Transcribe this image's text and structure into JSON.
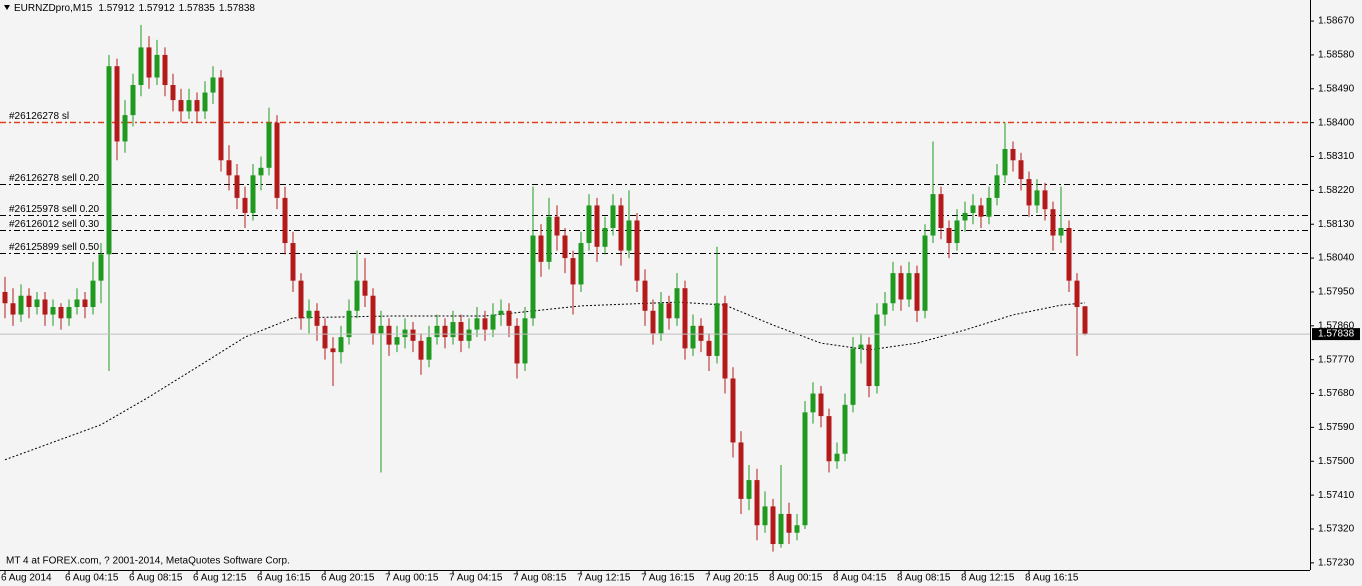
{
  "chart_data": {
    "type": "candlestick",
    "title": "EURNZDpro,M15",
    "annotation": "MT 4 at FOREX.com, ? 2001-2014, MetaQuotes Software Corp.",
    "up_color": "#1f9a1f",
    "down_color": "#b31b1b",
    "ylim": [
      1.57211,
      1.58718
    ],
    "yticks": [
      {
        "value": 1.5867,
        "label": "1.58670"
      },
      {
        "value": 1.5858,
        "label": "1.58580"
      },
      {
        "value": 1.5849,
        "label": "1.58490"
      },
      {
        "value": 1.584,
        "label": "1.58400"
      },
      {
        "value": 1.5831,
        "label": "1.58310"
      },
      {
        "value": 1.5822,
        "label": "1.58220"
      },
      {
        "value": 1.5813,
        "label": "1.58130"
      },
      {
        "value": 1.5804,
        "label": "1.58040"
      },
      {
        "value": 1.5795,
        "label": "1.57950"
      },
      {
        "value": 1.5786,
        "label": "1.57860"
      },
      {
        "value": 1.5777,
        "label": "1.57770"
      },
      {
        "value": 1.5768,
        "label": "1.57680"
      },
      {
        "value": 1.5759,
        "label": "1.57590"
      },
      {
        "value": 1.575,
        "label": "1.57500"
      },
      {
        "value": 1.5741,
        "label": "1.57410"
      },
      {
        "value": 1.5732,
        "label": "1.57320"
      },
      {
        "value": 1.5723,
        "label": "1.57230"
      }
    ],
    "categories": [
      "6 Aug 2014",
      null,
      null,
      null,
      null,
      null,
      null,
      null,
      "6 Aug 04:15",
      null,
      null,
      null,
      null,
      null,
      null,
      null,
      "6 Aug 08:15",
      null,
      null,
      null,
      null,
      null,
      null,
      null,
      "6 Aug 12:15",
      null,
      null,
      null,
      null,
      null,
      null,
      null,
      "6 Aug 16:15",
      null,
      null,
      null,
      null,
      null,
      null,
      null,
      "6 Aug 20:15",
      null,
      null,
      null,
      null,
      null,
      null,
      null,
      "7 Aug 00:15",
      null,
      null,
      null,
      null,
      null,
      null,
      null,
      "7 Aug 04:15",
      null,
      null,
      null,
      null,
      null,
      null,
      null,
      "7 Aug 08:15",
      null,
      null,
      null,
      null,
      null,
      null,
      null,
      "7 Aug 12:15",
      null,
      null,
      null,
      null,
      null,
      null,
      null,
      "7 Aug 16:15",
      null,
      null,
      null,
      null,
      null,
      null,
      null,
      "7 Aug 20:15",
      null,
      null,
      null,
      null,
      null,
      null,
      null,
      "8 Aug 00:15",
      null,
      null,
      null,
      null,
      null,
      null,
      null,
      "8 Aug 04:15",
      null,
      null,
      null,
      null,
      null,
      null,
      null,
      "8 Aug 08:15",
      null,
      null,
      null,
      null,
      null,
      null,
      null,
      "8 Aug 12:15",
      null,
      null,
      null,
      null,
      null,
      null,
      null,
      "8 Aug 16:15",
      null,
      null,
      null,
      null,
      null,
      null,
      null
    ],
    "candles": [
      [
        1.5795,
        1.5799,
        1.5788,
        1.5792
      ],
      [
        1.5792,
        1.5796,
        1.5786,
        1.5789
      ],
      [
        1.5789,
        1.5797,
        1.5787,
        1.5794
      ],
      [
        1.5794,
        1.5796,
        1.5788,
        1.5791
      ],
      [
        1.5791,
        1.5795,
        1.5789,
        1.5793
      ],
      [
        1.5793,
        1.5795,
        1.5786,
        1.5789
      ],
      [
        1.5789,
        1.5793,
        1.5786,
        1.5791
      ],
      [
        1.5791,
        1.5792,
        1.5785,
        1.5788
      ],
      [
        1.5788,
        1.5793,
        1.5786,
        1.5791
      ],
      [
        1.5791,
        1.5796,
        1.5789,
        1.5793
      ],
      [
        1.5793,
        1.5795,
        1.5788,
        1.5791
      ],
      [
        1.5791,
        1.5803,
        1.5789,
        1.5798
      ],
      [
        1.5798,
        1.5808,
        1.5792,
        1.5805
      ],
      [
        1.5805,
        1.5858,
        1.5774,
        1.5855
      ],
      [
        1.5855,
        1.5857,
        1.583,
        1.5835
      ],
      [
        1.5835,
        1.5846,
        1.5832,
        1.5842
      ],
      [
        1.5842,
        1.5853,
        1.5839,
        1.585
      ],
      [
        1.585,
        1.5866,
        1.5847,
        1.586
      ],
      [
        1.586,
        1.5863,
        1.5849,
        1.5852
      ],
      [
        1.5852,
        1.5862,
        1.585,
        1.5858
      ],
      [
        1.5858,
        1.586,
        1.5847,
        1.585
      ],
      [
        1.585,
        1.5853,
        1.5843,
        1.5846
      ],
      [
        1.5846,
        1.5849,
        1.584,
        1.5843
      ],
      [
        1.5843,
        1.5849,
        1.5841,
        1.5846
      ],
      [
        1.5846,
        1.5848,
        1.584,
        1.5843
      ],
      [
        1.5843,
        1.5851,
        1.5841,
        1.5848
      ],
      [
        1.5848,
        1.5855,
        1.5845,
        1.5852
      ],
      [
        1.5852,
        1.5854,
        1.5827,
        1.583
      ],
      [
        1.583,
        1.5834,
        1.5822,
        1.5826
      ],
      [
        1.5826,
        1.5829,
        1.5817,
        1.582
      ],
      [
        1.582,
        1.5823,
        1.5812,
        1.5816
      ],
      [
        1.5816,
        1.5829,
        1.5814,
        1.5826
      ],
      [
        1.5826,
        1.5831,
        1.5822,
        1.5828
      ],
      [
        1.5828,
        1.5844,
        1.5826,
        1.584
      ],
      [
        1.584,
        1.5842,
        1.5817,
        1.582
      ],
      [
        1.582,
        1.5823,
        1.5805,
        1.5808
      ],
      [
        1.5808,
        1.5811,
        1.5795,
        1.5798
      ],
      [
        1.5798,
        1.58,
        1.5785,
        1.5788
      ],
      [
        1.5788,
        1.5793,
        1.5784,
        1.579
      ],
      [
        1.579,
        1.5792,
        1.5782,
        1.5786
      ],
      [
        1.5786,
        1.5788,
        1.5777,
        1.578
      ],
      [
        1.578,
        1.5783,
        1.577,
        1.5779
      ],
      [
        1.5779,
        1.5786,
        1.5776,
        1.5783
      ],
      [
        1.5783,
        1.5793,
        1.5781,
        1.579
      ],
      [
        1.579,
        1.5806,
        1.5788,
        1.5798
      ],
      [
        1.5798,
        1.5804,
        1.5791,
        1.5794
      ],
      [
        1.5794,
        1.5796,
        1.5781,
        1.5784
      ],
      [
        1.5784,
        1.579,
        1.5747,
        1.5786
      ],
      [
        1.5786,
        1.5788,
        1.5778,
        1.5781
      ],
      [
        1.5781,
        1.5786,
        1.5779,
        1.5783
      ],
      [
        1.5783,
        1.5788,
        1.578,
        1.5785
      ],
      [
        1.5785,
        1.5787,
        1.5779,
        1.5782
      ],
      [
        1.5782,
        1.5784,
        1.5773,
        1.5777
      ],
      [
        1.5777,
        1.5786,
        1.5775,
        1.5783
      ],
      [
        1.5783,
        1.5789,
        1.5781,
        1.5786
      ],
      [
        1.5786,
        1.5788,
        1.578,
        1.5783
      ],
      [
        1.5783,
        1.579,
        1.5781,
        1.5787
      ],
      [
        1.5787,
        1.5789,
        1.5779,
        1.5782
      ],
      [
        1.5782,
        1.5788,
        1.578,
        1.5785
      ],
      [
        1.5785,
        1.5791,
        1.5783,
        1.5788
      ],
      [
        1.5788,
        1.579,
        1.5782,
        1.5785
      ],
      [
        1.5785,
        1.5792,
        1.5783,
        1.5789
      ],
      [
        1.5789,
        1.5793,
        1.5786,
        1.579
      ],
      [
        1.579,
        1.5792,
        1.5783,
        1.5786
      ],
      [
        1.5786,
        1.5788,
        1.5772,
        1.5776
      ],
      [
        1.5776,
        1.5791,
        1.5774,
        1.5788
      ],
      [
        1.5788,
        1.5823,
        1.5786,
        1.581
      ],
      [
        1.581,
        1.5813,
        1.5799,
        1.5803
      ],
      [
        1.5803,
        1.582,
        1.5801,
        1.5815
      ],
      [
        1.5815,
        1.5818,
        1.5806,
        1.581
      ],
      [
        1.581,
        1.5812,
        1.58,
        1.5804
      ],
      [
        1.5804,
        1.5806,
        1.5789,
        1.5797
      ],
      [
        1.5797,
        1.5811,
        1.5795,
        1.5808
      ],
      [
        1.5808,
        1.5821,
        1.5806,
        1.5818
      ],
      [
        1.5818,
        1.582,
        1.5803,
        1.5807
      ],
      [
        1.5807,
        1.5815,
        1.5805,
        1.5812
      ],
      [
        1.5812,
        1.5821,
        1.581,
        1.5818
      ],
      [
        1.5818,
        1.582,
        1.5802,
        1.5806
      ],
      [
        1.5806,
        1.5822,
        1.5804,
        1.5814
      ],
      [
        1.5814,
        1.5816,
        1.5795,
        1.5798
      ],
      [
        1.5798,
        1.5801,
        1.5786,
        1.579
      ],
      [
        1.579,
        1.5793,
        1.5781,
        1.5784
      ],
      [
        1.5784,
        1.5795,
        1.5782,
        1.5792
      ],
      [
        1.5792,
        1.5794,
        1.5785,
        1.5788
      ],
      [
        1.5788,
        1.58,
        1.5786,
        1.5796
      ],
      [
        1.5796,
        1.5798,
        1.5777,
        1.578
      ],
      [
        1.578,
        1.5789,
        1.5778,
        1.5786
      ],
      [
        1.5786,
        1.5788,
        1.5779,
        1.5782
      ],
      [
        1.5782,
        1.5784,
        1.5774,
        1.5778
      ],
      [
        1.5778,
        1.5807,
        1.5776,
        1.5792
      ],
      [
        1.5792,
        1.5794,
        1.5768,
        1.5772
      ],
      [
        1.5772,
        1.5775,
        1.5751,
        1.5755
      ],
      [
        1.5755,
        1.5758,
        1.5736,
        1.574
      ],
      [
        1.574,
        1.5749,
        1.5737,
        1.5745
      ],
      [
        1.5745,
        1.5748,
        1.5729,
        1.5733
      ],
      [
        1.5733,
        1.5742,
        1.5731,
        1.5738
      ],
      [
        1.5738,
        1.574,
        1.5726,
        1.5728
      ],
      [
        1.5728,
        1.5749,
        1.5727,
        1.5736
      ],
      [
        1.5736,
        1.5739,
        1.5728,
        1.5731
      ],
      [
        1.5731,
        1.5736,
        1.5729,
        1.5733
      ],
      [
        1.5733,
        1.5766,
        1.5732,
        1.5763
      ],
      [
        1.5763,
        1.5771,
        1.576,
        1.5768
      ],
      [
        1.5768,
        1.577,
        1.5759,
        1.5762
      ],
      [
        1.5762,
        1.5764,
        1.5747,
        1.575
      ],
      [
        1.575,
        1.5755,
        1.5748,
        1.5752
      ],
      [
        1.5752,
        1.5768,
        1.575,
        1.5765
      ],
      [
        1.5765,
        1.5783,
        1.5763,
        1.578
      ],
      [
        1.578,
        1.5784,
        1.5776,
        1.5781
      ],
      [
        1.5781,
        1.5783,
        1.5767,
        1.577
      ],
      [
        1.577,
        1.5792,
        1.5768,
        1.5789
      ],
      [
        1.5789,
        1.5795,
        1.5786,
        1.5792
      ],
      [
        1.5792,
        1.5803,
        1.579,
        1.58
      ],
      [
        1.58,
        1.5802,
        1.579,
        1.5793
      ],
      [
        1.5793,
        1.5803,
        1.5791,
        1.58
      ],
      [
        1.58,
        1.5802,
        1.5787,
        1.579
      ],
      [
        1.579,
        1.5813,
        1.5788,
        1.581
      ],
      [
        1.581,
        1.5835,
        1.5808,
        1.5821
      ],
      [
        1.5821,
        1.5823,
        1.5809,
        1.5812
      ],
      [
        1.5812,
        1.5814,
        1.5804,
        1.5808
      ],
      [
        1.5808,
        1.5817,
        1.5806,
        1.5814
      ],
      [
        1.5814,
        1.5819,
        1.5811,
        1.5816
      ],
      [
        1.5816,
        1.5821,
        1.5813,
        1.5818
      ],
      [
        1.5818,
        1.582,
        1.5812,
        1.5815
      ],
      [
        1.5815,
        1.5823,
        1.5813,
        1.582
      ],
      [
        1.582,
        1.5829,
        1.5818,
        1.5826
      ],
      [
        1.5826,
        1.584,
        1.5824,
        1.5833
      ],
      [
        1.5833,
        1.5835,
        1.5827,
        1.583
      ],
      [
        1.583,
        1.5832,
        1.5822,
        1.5825
      ],
      [
        1.5825,
        1.5827,
        1.5815,
        1.5818
      ],
      [
        1.5818,
        1.5825,
        1.5816,
        1.5822
      ],
      [
        1.5822,
        1.5824,
        1.5814,
        1.5817
      ],
      [
        1.5817,
        1.5819,
        1.5806,
        1.581
      ],
      [
        1.581,
        1.5823,
        1.5808,
        1.5812
      ],
      [
        1.5812,
        1.5814,
        1.5795,
        1.5798
      ],
      [
        1.5798,
        1.58,
        1.5778,
        1.5791
      ],
      [
        1.57912,
        1.57912,
        1.57835,
        1.57838
      ]
    ],
    "ma": {
      "color": "#000000",
      "x": [
        0,
        12,
        18,
        24,
        30,
        36,
        48,
        60,
        72,
        84,
        90,
        96,
        102,
        108,
        114,
        120,
        126,
        132,
        135
      ],
      "values": [
        1.57504,
        1.57597,
        1.57671,
        1.5775,
        1.5783,
        1.57881,
        1.57886,
        1.57886,
        1.57913,
        1.57923,
        1.57915,
        1.57862,
        1.57814,
        1.57796,
        1.57814,
        1.57849,
        1.57889,
        1.57915,
        1.57921
      ]
    },
    "levels": [
      {
        "label": "#26126278 sl",
        "price": 1.58403,
        "color": "#e0401a"
      },
      {
        "label": "#26126278 sell 0.20",
        "price": 1.58237,
        "color": "#000000"
      },
      {
        "label": "#26125978 sell 0.20",
        "price": 1.58155,
        "color": "#000000"
      },
      {
        "label": "#26126012 sell 0.30",
        "price": 1.58115,
        "color": "#000000"
      },
      {
        "label": "#26125899 sell 0.50",
        "price": 1.58054,
        "color": "#000000"
      }
    ]
  }
}
